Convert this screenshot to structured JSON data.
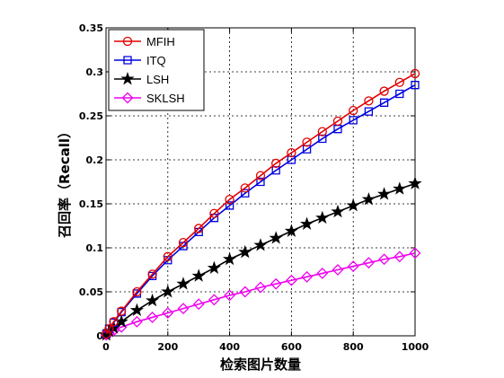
{
  "chart_data": {
    "type": "line",
    "xlabel": "检索图片数量",
    "ylabel": "召回率（Recall）",
    "xlim": [
      0,
      1000
    ],
    "ylim": [
      0,
      0.35
    ],
    "xticks": [
      0,
      200,
      400,
      600,
      800,
      1000
    ],
    "yticks": [
      0,
      0.05,
      0.1,
      0.15,
      0.2,
      0.25,
      0.3,
      0.35
    ],
    "grid": true,
    "legend_position": "top-left",
    "x": [
      1,
      10,
      25,
      50,
      100,
      150,
      200,
      250,
      300,
      350,
      400,
      450,
      500,
      550,
      600,
      650,
      700,
      750,
      800,
      850,
      900,
      950,
      1000
    ],
    "series": [
      {
        "name": "MFIH",
        "color": "#e00000",
        "marker": "circle",
        "values": [
          0.002,
          0.008,
          0.016,
          0.028,
          0.05,
          0.07,
          0.09,
          0.106,
          0.122,
          0.139,
          0.155,
          0.168,
          0.182,
          0.196,
          0.208,
          0.22,
          0.232,
          0.244,
          0.256,
          0.267,
          0.278,
          0.288,
          0.298
        ]
      },
      {
        "name": "ITQ",
        "color": "#0000e0",
        "marker": "square",
        "values": [
          0.002,
          0.008,
          0.015,
          0.027,
          0.048,
          0.068,
          0.086,
          0.102,
          0.118,
          0.134,
          0.148,
          0.162,
          0.175,
          0.188,
          0.2,
          0.212,
          0.224,
          0.235,
          0.245,
          0.255,
          0.265,
          0.275,
          0.285
        ]
      },
      {
        "name": "LSH",
        "color": "#000000",
        "marker": "star",
        "values": [
          0.001,
          0.005,
          0.009,
          0.016,
          0.029,
          0.04,
          0.05,
          0.059,
          0.068,
          0.077,
          0.087,
          0.095,
          0.103,
          0.111,
          0.119,
          0.127,
          0.134,
          0.141,
          0.148,
          0.155,
          0.161,
          0.167,
          0.173
        ]
      },
      {
        "name": "SKLSH",
        "color": "#ee00ee",
        "marker": "diamond",
        "values": [
          0.001,
          0.003,
          0.006,
          0.01,
          0.016,
          0.021,
          0.026,
          0.031,
          0.036,
          0.041,
          0.046,
          0.05,
          0.055,
          0.059,
          0.063,
          0.067,
          0.071,
          0.075,
          0.079,
          0.083,
          0.087,
          0.09,
          0.094
        ]
      }
    ]
  }
}
